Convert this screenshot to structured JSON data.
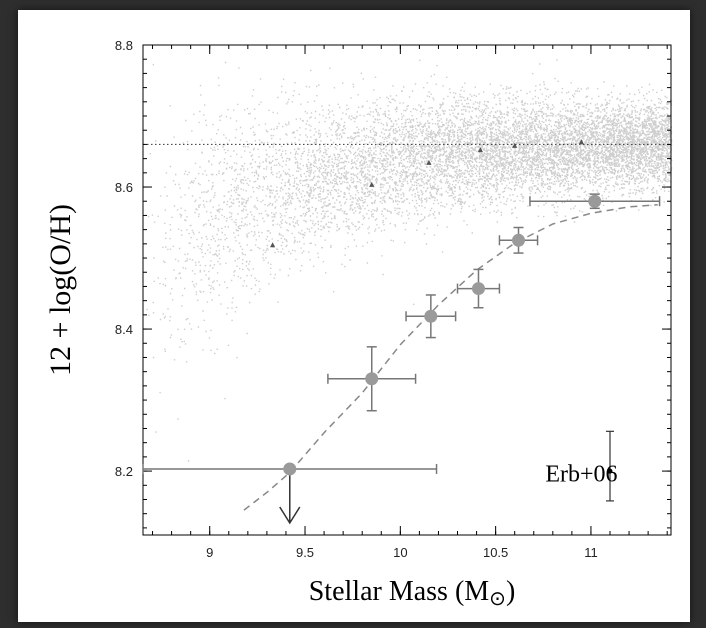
{
  "chart_data": {
    "type": "scatter",
    "title": "",
    "xlabel": "Stellar Mass (M⊙)",
    "xlabel_main": "Stellar Mass (M",
    "xlabel_symbol": "⊙",
    "xlabel_close": ")",
    "ylabel": "12 + log(O/H)",
    "xlim": [
      8.65,
      11.42
    ],
    "ylim": [
      8.11,
      8.8
    ],
    "xticks": [
      "9",
      "9.5",
      "10",
      "10.5",
      "11"
    ],
    "yticks": [
      "8.2",
      "8.4",
      "8.6",
      "8.8"
    ],
    "reference_line_y": 8.66,
    "background_cloud": {
      "description": "dense gray cloud of local galaxies",
      "color": "#bdbdbd"
    },
    "sdss_medians": {
      "x": [
        9.33,
        9.85,
        10.15,
        10.42,
        10.6,
        10.95
      ],
      "y": [
        8.518,
        8.603,
        8.634,
        8.652,
        8.658,
        8.663
      ]
    },
    "binned_points": {
      "x": [
        9.42,
        9.85,
        10.16,
        10.41,
        10.62,
        11.02
      ],
      "y": [
        8.203,
        8.33,
        8.418,
        8.457,
        8.525,
        8.58
      ],
      "x_err": [
        0.77,
        0.23,
        0.13,
        0.11,
        0.1,
        0.34
      ],
      "y_err": [
        0.0,
        0.045,
        0.03,
        0.027,
        0.018,
        0.01
      ],
      "upper_limit": [
        true,
        false,
        false,
        false,
        false,
        false
      ],
      "color": "#9a9a9a"
    },
    "fit_curve": {
      "style": "dashed",
      "x": [
        9.18,
        9.3,
        9.42,
        9.6,
        9.8,
        10.0,
        10.2,
        10.4,
        10.6,
        10.8,
        11.0,
        11.2,
        11.35
      ],
      "y": [
        8.145,
        8.17,
        8.198,
        8.254,
        8.31,
        8.378,
        8.434,
        8.483,
        8.521,
        8.548,
        8.563,
        8.572,
        8.575
      ]
    },
    "annotation": {
      "text": "Erb+06",
      "error_bar_x": 11.1,
      "error_bar_y": 8.2,
      "error_bar_yerr": [
        8.158,
        8.256
      ]
    }
  }
}
